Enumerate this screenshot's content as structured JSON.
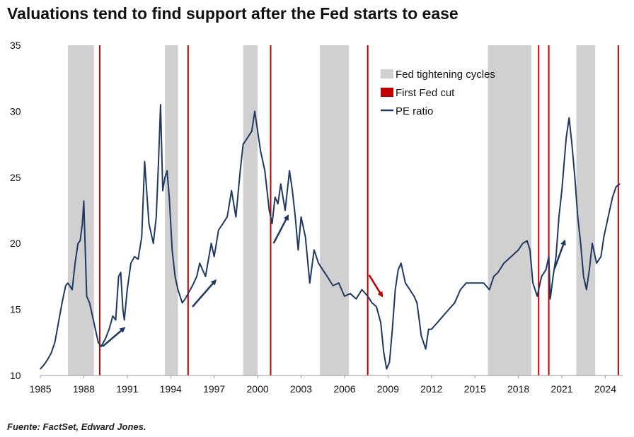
{
  "chart_data": {
    "type": "line",
    "title": "Valuations tend to find support after the Fed starts to ease",
    "xlabel": "",
    "ylabel": "",
    "xlim": [
      1985,
      2025.2
    ],
    "ylim": [
      10,
      35
    ],
    "x_ticks": [
      1985,
      1988,
      1991,
      1994,
      1997,
      2000,
      2003,
      2006,
      2009,
      2012,
      2015,
      2018,
      2021,
      2024
    ],
    "y_ticks": [
      10,
      15,
      20,
      25,
      30,
      35
    ],
    "legend": [
      {
        "label": "Fed tightening cycles",
        "color": "#d0d0d0",
        "kind": "box"
      },
      {
        "label": "First Fed cut",
        "color": "#c00000",
        "kind": "box"
      },
      {
        "label": "PE ratio",
        "color": "#1f3864",
        "kind": "line"
      }
    ],
    "legend_position": "top-right",
    "tightening_cycles": [
      [
        1986.9,
        1988.7
      ],
      [
        1993.6,
        1994.5
      ],
      [
        1999.0,
        2000.0
      ],
      [
        2004.3,
        2006.3
      ],
      [
        2015.9,
        2018.9
      ],
      [
        2022.0,
        2023.3
      ]
    ],
    "first_fed_cuts": [
      1989.1,
      1995.2,
      2000.9,
      2007.6,
      2019.4,
      2020.1,
      2024.9
    ],
    "series": [
      {
        "name": "PE ratio",
        "x": [
          1985.0,
          1985.25,
          1985.5,
          1985.75,
          1986.0,
          1986.25,
          1986.5,
          1986.75,
          1986.9,
          1987.2,
          1987.4,
          1987.6,
          1987.75,
          1987.9,
          1988.0,
          1988.2,
          1988.4,
          1988.6,
          1988.8,
          1989.0,
          1989.2,
          1989.5,
          1989.75,
          1990.0,
          1990.2,
          1990.4,
          1990.55,
          1990.7,
          1990.8,
          1991.0,
          1991.25,
          1991.5,
          1991.75,
          1992.0,
          1992.2,
          1992.5,
          1992.8,
          1993.0,
          1993.15,
          1993.3,
          1993.45,
          1993.6,
          1993.75,
          1993.9,
          1994.1,
          1994.3,
          1994.5,
          1994.8,
          1995.0,
          1995.2,
          1995.5,
          1995.8,
          1996.0,
          1996.4,
          1996.8,
          1997.0,
          1997.3,
          1997.6,
          1997.9,
          1998.2,
          1998.5,
          1998.8,
          1999.0,
          1999.3,
          1999.6,
          1999.8,
          2000.0,
          2000.2,
          2000.5,
          2000.8,
          2001.0,
          2001.2,
          2001.4,
          2001.6,
          2001.9,
          2002.2,
          2002.4,
          2002.6,
          2002.8,
          2003.0,
          2003.3,
          2003.6,
          2003.9,
          2004.2,
          2004.5,
          2004.8,
          2005.2,
          2005.6,
          2006.0,
          2006.4,
          2006.8,
          2007.2,
          2007.6,
          2007.9,
          2008.2,
          2008.5,
          2008.7,
          2008.9,
          2009.1,
          2009.3,
          2009.5,
          2009.7,
          2009.9,
          2010.2,
          2010.5,
          2010.8,
          2011.0,
          2011.3,
          2011.6,
          2011.8,
          2012.0,
          2012.4,
          2012.8,
          2013.2,
          2013.6,
          2014.0,
          2014.4,
          2014.8,
          2015.2,
          2015.6,
          2016.0,
          2016.3,
          2016.6,
          2017.0,
          2017.5,
          2018.0,
          2018.3,
          2018.6,
          2018.8,
          2019.0,
          2019.3,
          2019.6,
          2019.9,
          2020.1,
          2020.2,
          2020.4,
          2020.6,
          2020.8,
          2021.0,
          2021.15,
          2021.3,
          2021.5,
          2021.7,
          2021.9,
          2022.1,
          2022.3,
          2022.5,
          2022.7,
          2022.9,
          2023.1,
          2023.4,
          2023.7,
          2023.9,
          2024.2,
          2024.5,
          2024.75,
          2025.0
        ],
        "values": [
          10.5,
          10.8,
          11.2,
          11.7,
          12.5,
          14.0,
          15.5,
          16.8,
          17.0,
          16.5,
          18.5,
          20.0,
          20.2,
          21.5,
          23.2,
          16.0,
          15.5,
          14.5,
          13.5,
          12.5,
          12.2,
          12.8,
          13.5,
          14.5,
          14.2,
          17.5,
          17.8,
          15.0,
          14.2,
          16.5,
          18.5,
          19.0,
          18.8,
          20.5,
          26.2,
          21.5,
          20.0,
          22.0,
          26.0,
          30.5,
          24.0,
          25.0,
          25.5,
          23.5,
          19.5,
          17.5,
          16.5,
          15.5,
          15.8,
          16.2,
          16.8,
          17.5,
          18.5,
          17.5,
          20.0,
          19.0,
          21.0,
          21.5,
          22.0,
          24.0,
          22.0,
          25.5,
          27.5,
          28.0,
          28.5,
          30.0,
          28.5,
          27.0,
          25.5,
          22.5,
          21.5,
          23.5,
          23.0,
          24.5,
          22.5,
          25.5,
          24.0,
          22.0,
          19.5,
          22.0,
          20.5,
          17.0,
          19.5,
          18.5,
          18.0,
          17.5,
          16.8,
          17.0,
          16.0,
          16.2,
          15.8,
          16.5,
          16.0,
          15.5,
          15.2,
          14.0,
          11.8,
          10.5,
          11.0,
          13.5,
          16.5,
          18.0,
          18.5,
          17.0,
          16.5,
          16.0,
          15.5,
          13.0,
          12.0,
          13.5,
          13.5,
          14.0,
          14.5,
          15.0,
          15.5,
          16.5,
          17.0,
          17.0,
          17.0,
          17.0,
          16.5,
          17.5,
          17.8,
          18.5,
          19.0,
          19.5,
          20.0,
          20.2,
          19.5,
          17.0,
          16.0,
          17.5,
          18.0,
          19.0,
          15.8,
          17.5,
          19.0,
          22.0,
          24.0,
          26.0,
          28.0,
          29.5,
          27.5,
          25.0,
          22.0,
          20.0,
          17.5,
          16.5,
          18.0,
          20.0,
          18.5,
          19.0,
          20.5,
          22.0,
          23.5,
          24.3,
          24.5
        ]
      }
    ],
    "annotations": [
      {
        "kind": "arrow",
        "color": "#1f3864",
        "from": [
          1989.3,
          12.2
        ],
        "to": [
          1990.8,
          13.6
        ]
      },
      {
        "kind": "arrow",
        "color": "#1f3864",
        "from": [
          1995.5,
          15.2
        ],
        "to": [
          1997.1,
          17.2
        ]
      },
      {
        "kind": "arrow",
        "color": "#1f3864",
        "from": [
          2001.1,
          20.0
        ],
        "to": [
          2002.1,
          22.1
        ]
      },
      {
        "kind": "arrow",
        "color": "#c00000",
        "from": [
          2007.7,
          17.6
        ],
        "to": [
          2008.6,
          16.0
        ]
      },
      {
        "kind": "arrow",
        "color": "#1f3864",
        "from": [
          2020.5,
          18.1
        ],
        "to": [
          2021.2,
          20.2
        ]
      }
    ]
  },
  "source": "Fuente: FactSet, Edward Jones."
}
